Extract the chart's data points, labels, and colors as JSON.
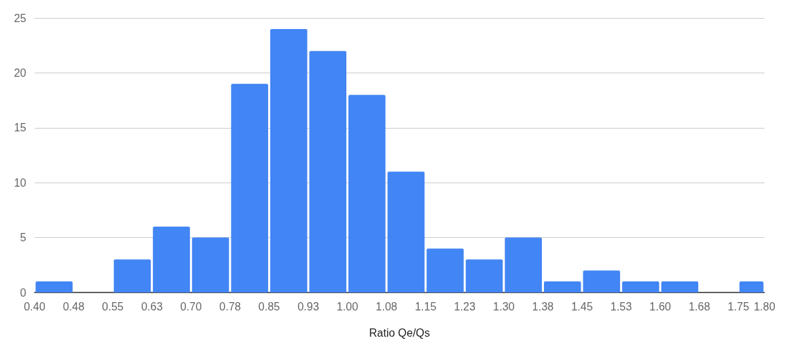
{
  "chart_data": {
    "type": "histogram",
    "xlabel": "Ratio Qe/Qs",
    "color": "#4285f4",
    "bins": [
      0.4,
      0.475,
      0.55,
      0.625,
      0.7,
      0.775,
      0.85,
      0.925,
      1.0,
      1.075,
      1.15,
      1.225,
      1.3,
      1.375,
      1.45,
      1.525,
      1.6,
      1.675,
      1.75,
      1.8
    ],
    "values": [
      1,
      0,
      3,
      6,
      5,
      19,
      24,
      22,
      18,
      11,
      4,
      3,
      5,
      1,
      2,
      1,
      1,
      0,
      1
    ],
    "xlim": [
      0.4,
      1.8
    ],
    "xticks": [
      {
        "value": 0.4,
        "label": "0.40"
      },
      {
        "value": 0.475,
        "label": "0.48"
      },
      {
        "value": 0.55,
        "label": "0.55"
      },
      {
        "value": 0.625,
        "label": "0.63"
      },
      {
        "value": 0.7,
        "label": "0.70"
      },
      {
        "value": 0.775,
        "label": "0.78"
      },
      {
        "value": 0.85,
        "label": "0.85"
      },
      {
        "value": 0.925,
        "label": "0.93"
      },
      {
        "value": 1.0,
        "label": "1.00"
      },
      {
        "value": 1.075,
        "label": "1.08"
      },
      {
        "value": 1.15,
        "label": "1.15"
      },
      {
        "value": 1.225,
        "label": "1.23"
      },
      {
        "value": 1.3,
        "label": "1.30"
      },
      {
        "value": 1.375,
        "label": "1.38"
      },
      {
        "value": 1.45,
        "label": "1.45"
      },
      {
        "value": 1.525,
        "label": "1.53"
      },
      {
        "value": 1.6,
        "label": "1.60"
      },
      {
        "value": 1.675,
        "label": "1.68"
      },
      {
        "value": 1.75,
        "label": "1.75"
      },
      {
        "value": 1.8,
        "label": "1.80"
      }
    ],
    "ylim": [
      0,
      25
    ],
    "yticks": [
      0,
      5,
      10,
      15,
      20,
      25
    ],
    "grid": "y"
  }
}
